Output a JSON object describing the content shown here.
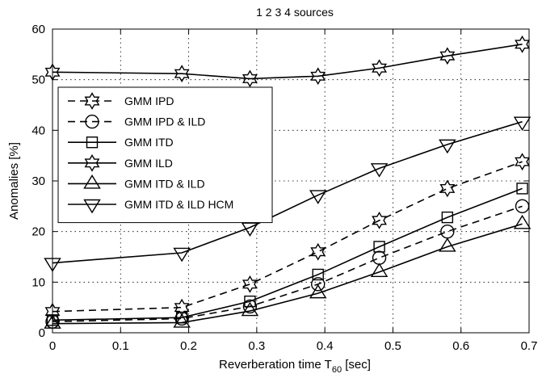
{
  "chart_data": {
    "type": "line",
    "title": "1  2  3  4 sources",
    "xlabel": "Reverberation time T",
    "xlabel_sub": "60",
    "xlabel_suffix": " [sec]",
    "ylabel": "Anomalies [%]",
    "xlim": [
      0,
      0.7
    ],
    "ylim": [
      0,
      60
    ],
    "xticks": [
      0,
      0.1,
      0.2,
      0.3,
      0.4,
      0.5,
      0.6,
      0.7
    ],
    "xtick_labels": [
      "0",
      "0.1",
      "0.2",
      "0.3",
      "0.4",
      "0.5",
      "0.6",
      "0.7"
    ],
    "yticks": [
      0,
      10,
      20,
      30,
      40,
      50,
      60
    ],
    "ytick_labels": [
      "0",
      "10",
      "20",
      "30",
      "40",
      "50",
      "60"
    ],
    "grid": true,
    "legend_position": "center-left",
    "x": [
      0,
      0.19,
      0.29,
      0.39,
      0.48,
      0.58,
      0.69
    ],
    "series": [
      {
        "name": "GMM IPD",
        "marker": "hexagram",
        "dash": "dashed",
        "values": [
          4.2,
          5.0,
          9.6,
          16.0,
          22.2,
          28.5,
          33.8
        ]
      },
      {
        "name": "GMM IPD & ILD",
        "marker": "circle",
        "dash": "dashed",
        "values": [
          2.2,
          2.8,
          5.2,
          9.6,
          14.8,
          20.0,
          25.0
        ]
      },
      {
        "name": "GMM ITD",
        "marker": "square",
        "dash": "solid",
        "values": [
          2.5,
          3.0,
          6.2,
          11.5,
          17.0,
          22.8,
          28.5
        ]
      },
      {
        "name": "GMM ILD",
        "marker": "hexagram",
        "dash": "solid",
        "values": [
          51.5,
          51.2,
          50.2,
          50.7,
          52.3,
          54.7,
          57.0
        ]
      },
      {
        "name": "GMM ITD & ILD",
        "marker": "triangle-up",
        "dash": "solid",
        "values": [
          1.8,
          2.0,
          4.3,
          7.8,
          12.0,
          17.0,
          21.5
        ]
      },
      {
        "name": "GMM ITD & ILD HCM",
        "marker": "triangle-down",
        "dash": "solid",
        "values": [
          13.8,
          15.8,
          20.8,
          27.2,
          32.5,
          37.2,
          41.7
        ]
      }
    ]
  }
}
